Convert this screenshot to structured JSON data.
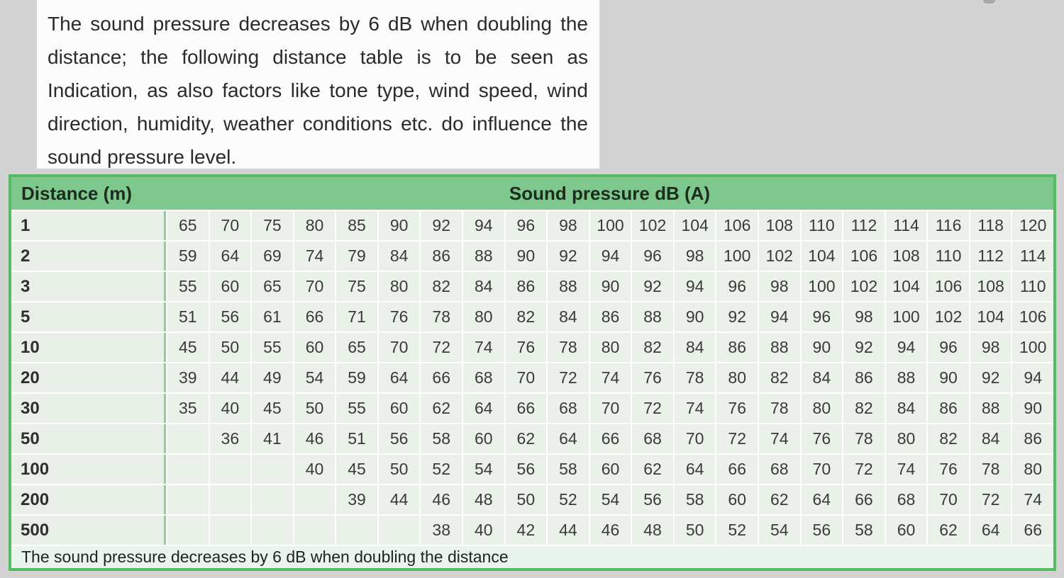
{
  "page": {
    "background_color": "#d3d3d3",
    "intro_text": "The sound pressure decreases by 6 dB when doubling the distance; the following distance table is to be seen as Indication, as also factors like tone type, wind speed, wind direction, humidity, weather conditions etc. do influence the sound pressure level."
  },
  "colors": {
    "table_border": "#55bc63",
    "header_bg": "#7ec88e",
    "cell_bg": "#e9f1e8",
    "footer_bg": "#e9f5ec",
    "column_separator": "#8fce9b"
  },
  "table": {
    "header": {
      "distance_label": "Distance (m)",
      "value_label": "Sound pressure dB (A)"
    },
    "rows": [
      {
        "distance": "1",
        "values": [
          "65",
          "70",
          "75",
          "80",
          "85",
          "90",
          "92",
          "94",
          "96",
          "98",
          "100",
          "102",
          "104",
          "106",
          "108",
          "110",
          "112",
          "114",
          "116",
          "118",
          "120"
        ]
      },
      {
        "distance": "2",
        "values": [
          "59",
          "64",
          "69",
          "74",
          "79",
          "84",
          "86",
          "88",
          "90",
          "92",
          "94",
          "96",
          "98",
          "100",
          "102",
          "104",
          "106",
          "108",
          "110",
          "112",
          "114"
        ]
      },
      {
        "distance": "3",
        "values": [
          "55",
          "60",
          "65",
          "70",
          "75",
          "80",
          "82",
          "84",
          "86",
          "88",
          "90",
          "92",
          "94",
          "96",
          "98",
          "100",
          "102",
          "104",
          "106",
          "108",
          "110"
        ]
      },
      {
        "distance": "5",
        "values": [
          "51",
          "56",
          "61",
          "66",
          "71",
          "76",
          "78",
          "80",
          "82",
          "84",
          "86",
          "88",
          "90",
          "92",
          "94",
          "96",
          "98",
          "100",
          "102",
          "104",
          "106"
        ]
      },
      {
        "distance": "10",
        "values": [
          "45",
          "50",
          "55",
          "60",
          "65",
          "70",
          "72",
          "74",
          "76",
          "78",
          "80",
          "82",
          "84",
          "86",
          "88",
          "90",
          "92",
          "94",
          "96",
          "98",
          "100"
        ]
      },
      {
        "distance": "20",
        "values": [
          "39",
          "44",
          "49",
          "54",
          "59",
          "64",
          "66",
          "68",
          "70",
          "72",
          "74",
          "76",
          "78",
          "80",
          "82",
          "84",
          "86",
          "88",
          "90",
          "92",
          "94"
        ]
      },
      {
        "distance": "30",
        "values": [
          "35",
          "40",
          "45",
          "50",
          "55",
          "60",
          "62",
          "64",
          "66",
          "68",
          "70",
          "72",
          "74",
          "76",
          "78",
          "80",
          "82",
          "84",
          "86",
          "88",
          "90"
        ]
      },
      {
        "distance": "50",
        "values": [
          "",
          "36",
          "41",
          "46",
          "51",
          "56",
          "58",
          "60",
          "62",
          "64",
          "66",
          "68",
          "70",
          "72",
          "74",
          "76",
          "78",
          "80",
          "82",
          "84",
          "86"
        ]
      },
      {
        "distance": "100",
        "values": [
          "",
          "",
          "",
          "40",
          "45",
          "50",
          "52",
          "54",
          "56",
          "58",
          "60",
          "62",
          "64",
          "66",
          "68",
          "70",
          "72",
          "74",
          "76",
          "78",
          "80"
        ]
      },
      {
        "distance": "200",
        "values": [
          "",
          "",
          "",
          "",
          "39",
          "44",
          "46",
          "48",
          "50",
          "52",
          "54",
          "56",
          "58",
          "60",
          "62",
          "64",
          "66",
          "68",
          "70",
          "72",
          "74"
        ]
      },
      {
        "distance": "500",
        "values": [
          "",
          "",
          "",
          "",
          "",
          "",
          "38",
          "40",
          "42",
          "44",
          "46",
          "48",
          "50",
          "52",
          "54",
          "56",
          "58",
          "60",
          "62",
          "64",
          "66"
        ]
      }
    ],
    "footer_note": "The sound pressure decreases by 6 dB when doubling the distance"
  }
}
